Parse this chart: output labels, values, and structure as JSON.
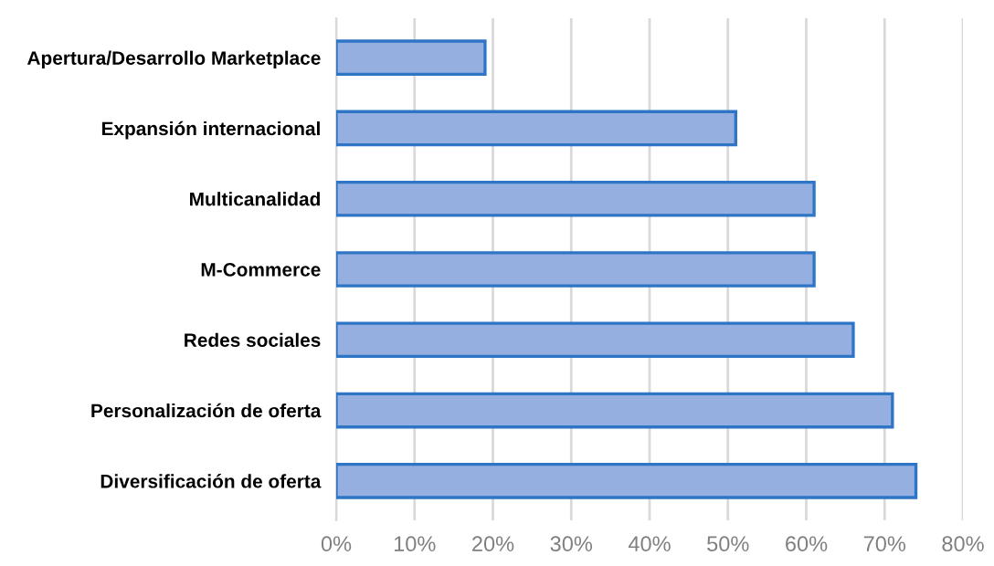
{
  "chart_data": {
    "type": "bar",
    "orientation": "horizontal",
    "categories": [
      "Apertura/Desarrollo Marketplace",
      "Expansión internacional",
      "Multicanalidad",
      "M-Commerce",
      "Redes sociales",
      "Personalización de oferta",
      "Diversificación de oferta"
    ],
    "values": [
      19,
      51,
      61,
      61,
      66,
      71,
      74
    ],
    "color": "#94afe0",
    "xlim": [
      0,
      80
    ],
    "xticks": [
      {
        "value": 0,
        "label": "0%"
      },
      {
        "value": 10,
        "label": "10%"
      },
      {
        "value": 20,
        "label": "20%"
      },
      {
        "value": 30,
        "label": "30%"
      },
      {
        "value": 40,
        "label": "40%"
      },
      {
        "value": 50,
        "label": "50%"
      },
      {
        "value": 60,
        "label": "60%"
      },
      {
        "value": 70,
        "label": "70%"
      },
      {
        "value": 80,
        "label": "80%"
      }
    ],
    "grid": "x",
    "legend": false
  }
}
